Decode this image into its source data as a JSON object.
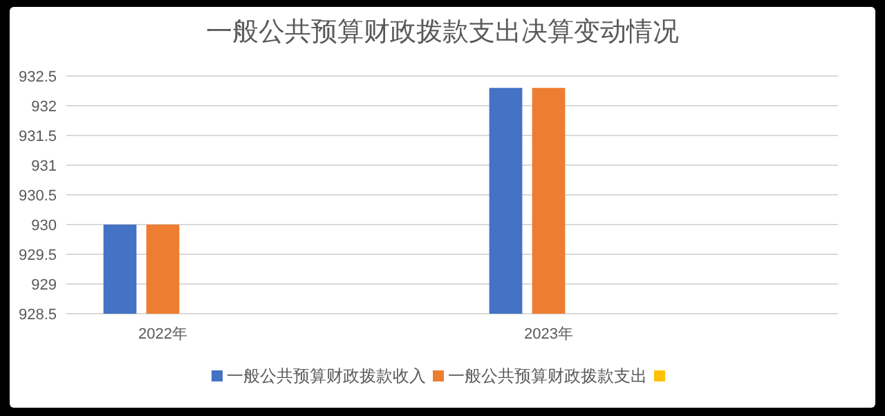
{
  "chart_data": {
    "type": "bar",
    "title": "一般公共预算财政拨款支出决算变动情况",
    "categories": [
      "2022年",
      "2023年"
    ],
    "series": [
      {
        "name": "一般公共预算财政拨款收入",
        "color": "#4472c4",
        "values": [
          930,
          932.3
        ]
      },
      {
        "name": "一般公共预算财政拨款支出",
        "color": "#ed7d31",
        "values": [
          930,
          932.3
        ]
      },
      {
        "color": "#ffc000",
        "values": [
          null,
          null
        ]
      }
    ],
    "ylim": [
      928.5,
      932.5
    ],
    "yticks": [
      928.5,
      929,
      929.5,
      930,
      930.5,
      931,
      931.5,
      932,
      932.5
    ],
    "grid": "y",
    "legend": "bottom"
  }
}
